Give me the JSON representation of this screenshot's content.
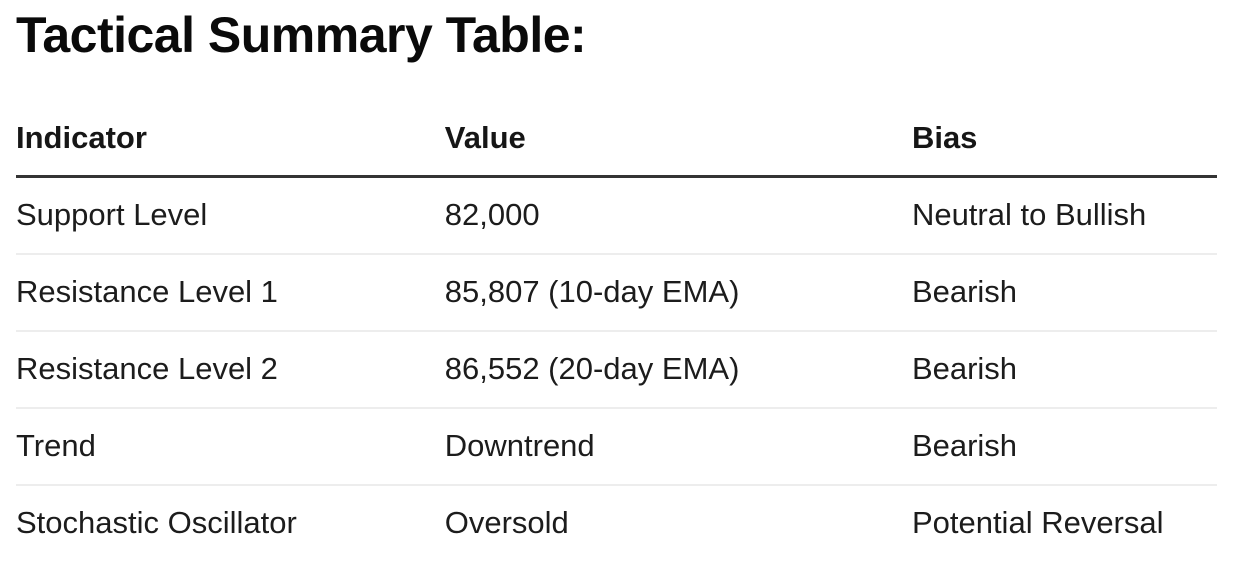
{
  "page": {
    "title": "Tactical Summary Table:"
  },
  "table": {
    "columns": [
      "Indicator",
      "Value",
      "Bias"
    ],
    "rows": [
      {
        "indicator": "Support Level",
        "value": "82,000",
        "bias": "Neutral to Bullish"
      },
      {
        "indicator": "Resistance Level 1",
        "value": "85,807 (10-day EMA)",
        "bias": "Bearish"
      },
      {
        "indicator": "Resistance Level 2",
        "value": "86,552 (20-day EMA)",
        "bias": "Bearish"
      },
      {
        "indicator": "Trend",
        "value": "Downtrend",
        "bias": "Bearish"
      },
      {
        "indicator": "Stochastic Oscillator",
        "value": "Oversold",
        "bias": "Potential Reversal"
      }
    ]
  },
  "colors": {
    "background": "#ffffff",
    "title_text": "#0a0a0a",
    "body_text": "#1c1c1c",
    "header_border": "#343434",
    "row_border": "#ededed"
  }
}
